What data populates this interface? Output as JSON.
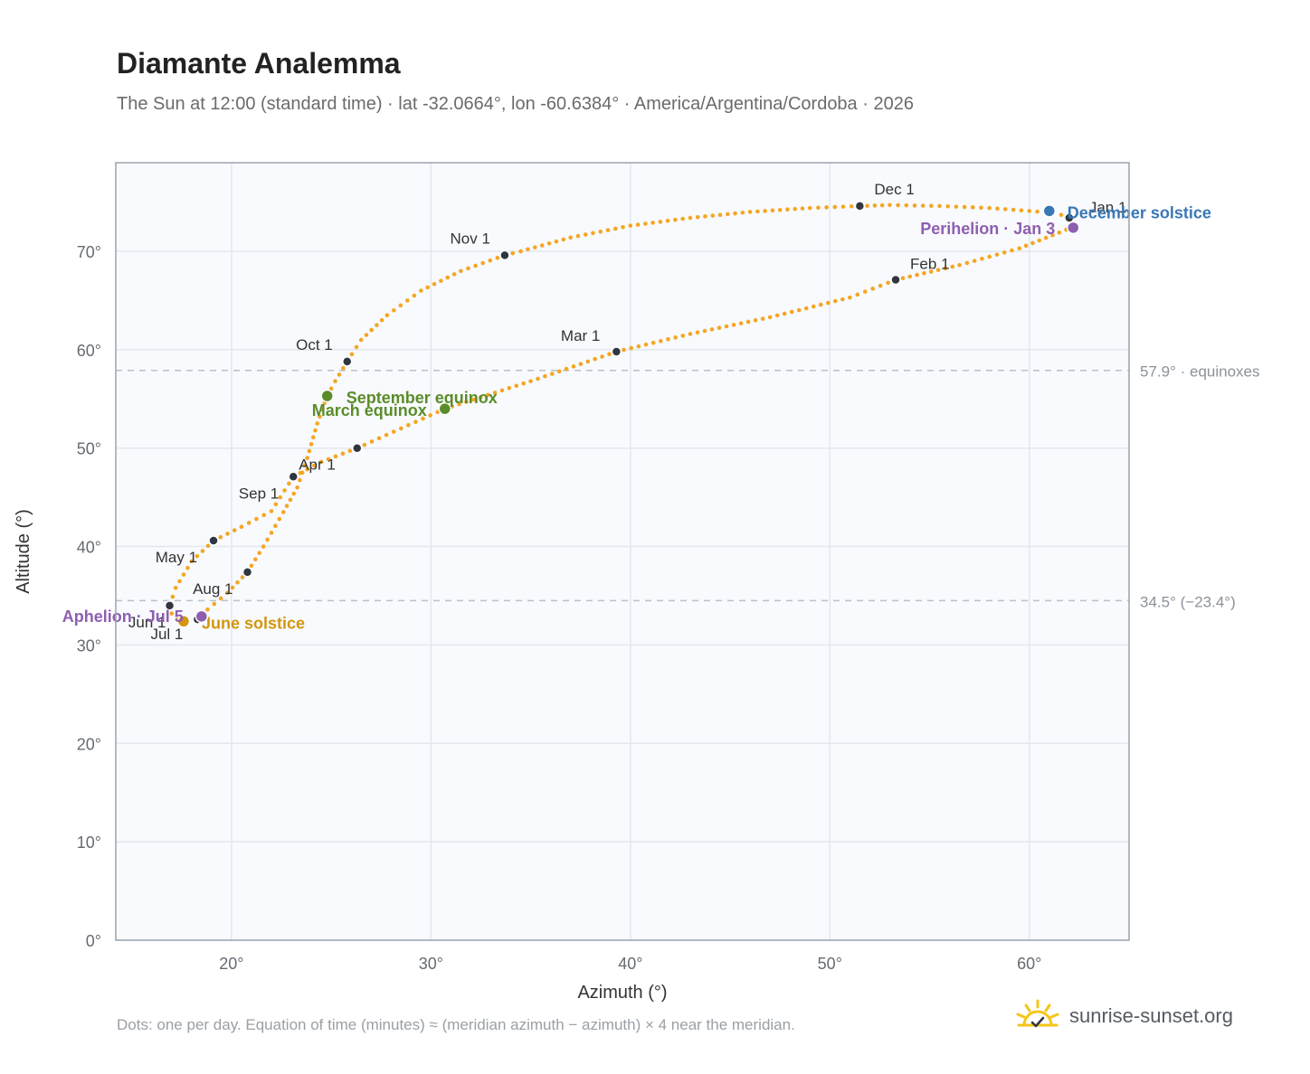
{
  "header": {
    "title": "Diamante Analemma",
    "subtitle": "The Sun at 12:00 (standard time) · lat -32.0664°, lon -60.6384° · America/Argentina/Cordoba · 2026"
  },
  "footer": {
    "note": "Dots: one per day. Equation of time (minutes) ≈ (meridian azimuth − azimuth) × 4 near the meridian.",
    "brand": "sunrise-sunset.org"
  },
  "colors": {
    "curve": "#f5a623",
    "month_marker": "#2f3640",
    "equinox": "#5b8c2a",
    "june_solstice": "#d4960f",
    "december_solstice": "#3a78b5",
    "aphelion_perihelion": "#8e5fb0",
    "grid": "#e3e8ee",
    "plot_background": "#f8fafd",
    "reference_line": "#b8c0cc",
    "brand_sun": "#f5c518"
  },
  "chart_data": {
    "type": "scatter",
    "xlabel": "Azimuth (°)",
    "ylabel": "Altitude (°)",
    "xlim": [
      14.2,
      65
    ],
    "ylim": [
      0,
      79
    ],
    "x_ticks": [
      20,
      30,
      40,
      50,
      60
    ],
    "y_ticks": [
      0,
      10,
      20,
      30,
      40,
      50,
      60,
      70
    ],
    "x_tick_labels": [
      "20°",
      "30°",
      "40°",
      "50°",
      "60°"
    ],
    "y_tick_labels": [
      "0°",
      "10°",
      "20°",
      "30°",
      "40°",
      "50°",
      "60°",
      "70°"
    ],
    "grid": true,
    "series": [
      {
        "points": [
          [
            62.0,
            73.5
          ],
          [
            61.2,
            73.9
          ],
          [
            60.0,
            74.1
          ],
          [
            58.0,
            74.4
          ],
          [
            55.5,
            74.6
          ],
          [
            53.0,
            74.7
          ],
          [
            51.5,
            74.6
          ],
          [
            49.0,
            74.4
          ],
          [
            46.0,
            74.0
          ],
          [
            43.0,
            73.4
          ],
          [
            40.0,
            72.6
          ],
          [
            37.0,
            71.4
          ],
          [
            34.5,
            70.0
          ],
          [
            33.7,
            69.6
          ],
          [
            31.5,
            68.0
          ],
          [
            29.5,
            66.0
          ],
          [
            27.8,
            63.5
          ],
          [
            26.5,
            61.0
          ],
          [
            25.8,
            58.8
          ],
          [
            25.2,
            56.8
          ],
          [
            24.8,
            55.3
          ],
          [
            24.3,
            52.5
          ],
          [
            23.8,
            49.0
          ],
          [
            23.3,
            46.0
          ],
          [
            22.6,
            43.5
          ],
          [
            21.6,
            40.0
          ],
          [
            20.8,
            37.4
          ],
          [
            19.8,
            35.3
          ],
          [
            18.8,
            33.6
          ],
          [
            18.3,
            33.0
          ],
          [
            17.8,
            32.6
          ],
          [
            17.3,
            32.6
          ],
          [
            17.0,
            33.2
          ],
          [
            16.9,
            34.0
          ],
          [
            17.2,
            35.8
          ],
          [
            18.0,
            38.5
          ],
          [
            19.1,
            40.6
          ],
          [
            20.5,
            42.0
          ],
          [
            22.0,
            43.6
          ],
          [
            23.1,
            47.1
          ],
          [
            24.5,
            48.6
          ],
          [
            26.3,
            50.0
          ],
          [
            28.5,
            52.0
          ],
          [
            30.7,
            54.0
          ],
          [
            35.0,
            56.8
          ],
          [
            39.3,
            59.8
          ],
          [
            43.0,
            61.6
          ],
          [
            47.0,
            63.3
          ],
          [
            51.0,
            65.3
          ],
          [
            53.3,
            67.1
          ],
          [
            56.5,
            68.6
          ],
          [
            59.5,
            70.3
          ],
          [
            61.5,
            71.9
          ],
          [
            62.2,
            72.5
          ],
          [
            62.0,
            73.5
          ]
        ]
      }
    ],
    "month_markers": [
      {
        "label": "Jan 1",
        "x": 62.0,
        "y": 73.4,
        "label_dx": 22,
        "label_dy": -6,
        "anchor": "start"
      },
      {
        "label": "Feb 1",
        "x": 53.3,
        "y": 67.1,
        "label_dx": 16,
        "label_dy": -12,
        "anchor": "start"
      },
      {
        "label": "Mar 1",
        "x": 39.3,
        "y": 59.8,
        "label_dx": -18,
        "label_dy": -12,
        "anchor": "end"
      },
      {
        "label": "",
        "x": 26.3,
        "y": 50.0
      },
      {
        "label": "Apr 1",
        "x": 23.1,
        "y": 47.1,
        "label_dx": 6,
        "label_dy": -8,
        "anchor": "start"
      },
      {
        "label": "May 1",
        "x": 19.1,
        "y": 40.6,
        "label_dx": -18,
        "label_dy": 24,
        "anchor": "end"
      },
      {
        "label": "Jun 1",
        "x": 16.9,
        "y": 34.0,
        "label_dx": -4,
        "label_dy": 24,
        "anchor": "end"
      },
      {
        "label": "Jul 1",
        "x": 18.3,
        "y": 32.6,
        "label_dx": -16,
        "label_dy": 22,
        "anchor": "end"
      },
      {
        "label": "Aug 1",
        "x": 20.8,
        "y": 37.4,
        "label_dx": -16,
        "label_dy": 24,
        "anchor": "end"
      },
      {
        "label": "Sep 1",
        "x": 23.1,
        "y": 47.1,
        "label_dx": -16,
        "label_dy": 24,
        "anchor": "end"
      },
      {
        "label": "Oct 1",
        "x": 25.8,
        "y": 58.8,
        "label_dx": -16,
        "label_dy": -13,
        "anchor": "end"
      },
      {
        "label": "Nov 1",
        "x": 33.7,
        "y": 69.6,
        "label_dx": -16,
        "label_dy": -13,
        "anchor": "end"
      },
      {
        "label": "Dec 1",
        "x": 51.5,
        "y": 74.6,
        "label_dx": 16,
        "label_dy": -13,
        "anchor": "start"
      }
    ],
    "events": [
      {
        "label": "March equinox",
        "x": 30.7,
        "y": 54.0,
        "color": "#5b8c2a",
        "label_dx": -20,
        "label_dy": 8,
        "anchor": "end"
      },
      {
        "label": "September equinox",
        "x": 24.8,
        "y": 55.3,
        "color": "#5b8c2a",
        "label_dx": 21,
        "label_dy": 8,
        "anchor": "start"
      },
      {
        "label": "June solstice",
        "x": 17.6,
        "y": 32.4,
        "color": "#d4960f",
        "label_dx": 20,
        "label_dy": 8,
        "anchor": "start"
      },
      {
        "label": "December solstice",
        "x": 61.0,
        "y": 74.1,
        "color": "#3a78b5",
        "label_dx": 20,
        "label_dy": 8,
        "anchor": "start"
      },
      {
        "label": "Aphelion · Jul 5",
        "x": 18.5,
        "y": 32.9,
        "color": "#8e5fb0",
        "label_dx": -20,
        "label_dy": 6,
        "anchor": "end"
      },
      {
        "label": "Perihelion · Jan 3",
        "x": 62.2,
        "y": 72.4,
        "color": "#8e5fb0",
        "label_dx": -20,
        "label_dy": 7,
        "anchor": "end"
      }
    ],
    "reference_lines": [
      {
        "y": 57.9,
        "label": "57.9° · equinoxes"
      },
      {
        "y": 34.5,
        "label": "34.5° (−23.4°)"
      }
    ]
  }
}
